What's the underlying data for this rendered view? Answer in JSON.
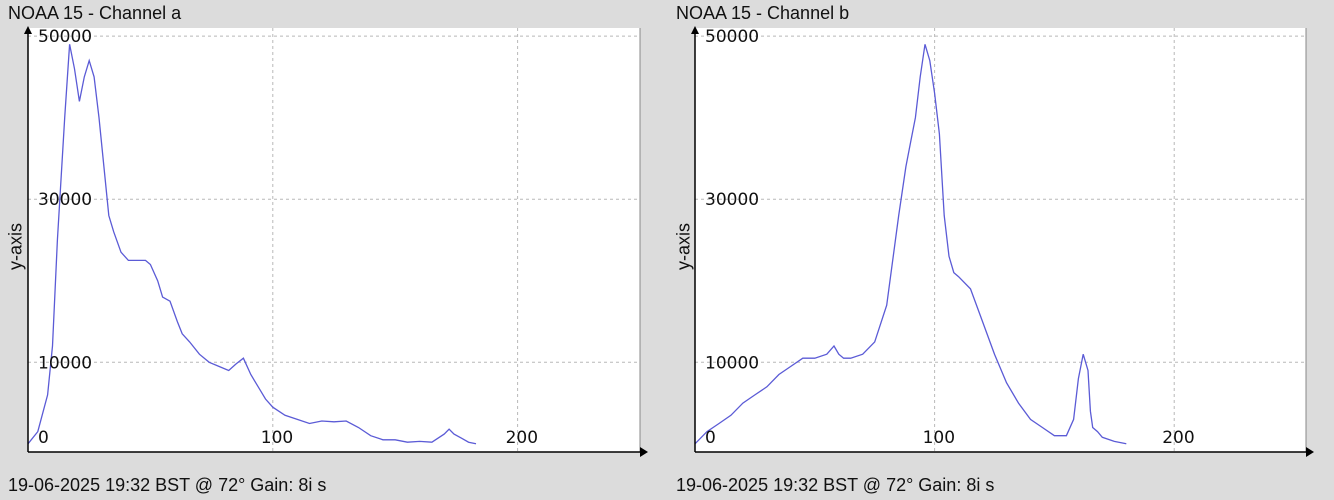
{
  "colors": {
    "background": "#dcdcdc",
    "plot_bg": "#ffffff",
    "line": "#5b5bd6",
    "grid": "#b8b8b8",
    "axis": "#000000"
  },
  "chart_data": [
    {
      "type": "line",
      "title": "NOAA 15 - Channel a",
      "ylabel": "y-axis",
      "footer": "19-06-2025 19:32 BST @ 72° Gain: 8i s",
      "xlim": [
        0,
        250
      ],
      "ylim": [
        -1000,
        51000
      ],
      "x_ticks": [
        0,
        100,
        200
      ],
      "y_ticks": [
        10000,
        30000,
        50000
      ],
      "grid": true,
      "series": [
        {
          "x": [
            0,
            4,
            8,
            10,
            12,
            15,
            17,
            19,
            21,
            23,
            25,
            27,
            29,
            31,
            33,
            35,
            38,
            41,
            44,
            48,
            50,
            53,
            55,
            58,
            61,
            63,
            66,
            70,
            74,
            78,
            82,
            85,
            88,
            91,
            93,
            95,
            97,
            100,
            105,
            110,
            115,
            120,
            125,
            130,
            135,
            140,
            145,
            150,
            155,
            160,
            165,
            170,
            172,
            174,
            177,
            180,
            183
          ],
          "y": [
            0,
            1500,
            6000,
            12000,
            25000,
            40000,
            49000,
            46000,
            42000,
            45000,
            47000,
            45000,
            40000,
            34000,
            28000,
            26000,
            23500,
            22500,
            22500,
            22500,
            22000,
            20000,
            18000,
            17500,
            15000,
            13500,
            12500,
            11000,
            10000,
            9500,
            9000,
            9800,
            10500,
            8500,
            7500,
            6500,
            5500,
            4500,
            3500,
            3000,
            2500,
            2800,
            2700,
            2800,
            2000,
            1000,
            500,
            500,
            200,
            300,
            200,
            1200,
            1800,
            1200,
            700,
            200,
            0
          ]
        }
      ]
    },
    {
      "type": "line",
      "title": "NOAA 15 - Channel b",
      "ylabel": "y-axis",
      "footer": "19-06-2025 19:32 BST @ 72° Gain: 8i s",
      "xlim": [
        0,
        255
      ],
      "ylim": [
        -1000,
        51000
      ],
      "x_ticks": [
        0,
        100,
        200
      ],
      "y_ticks": [
        10000,
        30000,
        50000
      ],
      "grid": true,
      "series": [
        {
          "x": [
            0,
            5,
            10,
            15,
            20,
            25,
            30,
            35,
            40,
            45,
            50,
            55,
            58,
            60,
            62,
            65,
            70,
            75,
            80,
            85,
            88,
            90,
            92,
            94,
            96,
            98,
            100,
            102,
            104,
            106,
            108,
            110,
            115,
            120,
            125,
            130,
            135,
            140,
            145,
            150,
            155,
            158,
            160,
            162,
            164,
            165,
            166,
            168,
            170,
            175,
            180
          ],
          "y": [
            0,
            1500,
            2500,
            3500,
            5000,
            6000,
            7000,
            8500,
            9500,
            10500,
            10500,
            11000,
            12000,
            11000,
            10500,
            10500,
            11000,
            12500,
            17000,
            28000,
            34000,
            37000,
            40000,
            45000,
            49000,
            47000,
            43000,
            38000,
            28000,
            23000,
            21000,
            20500,
            19000,
            15000,
            11000,
            7500,
            5000,
            3000,
            2000,
            1000,
            1000,
            3000,
            8000,
            11000,
            9000,
            4000,
            2000,
            1500,
            800,
            300,
            0
          ]
        }
      ]
    }
  ]
}
